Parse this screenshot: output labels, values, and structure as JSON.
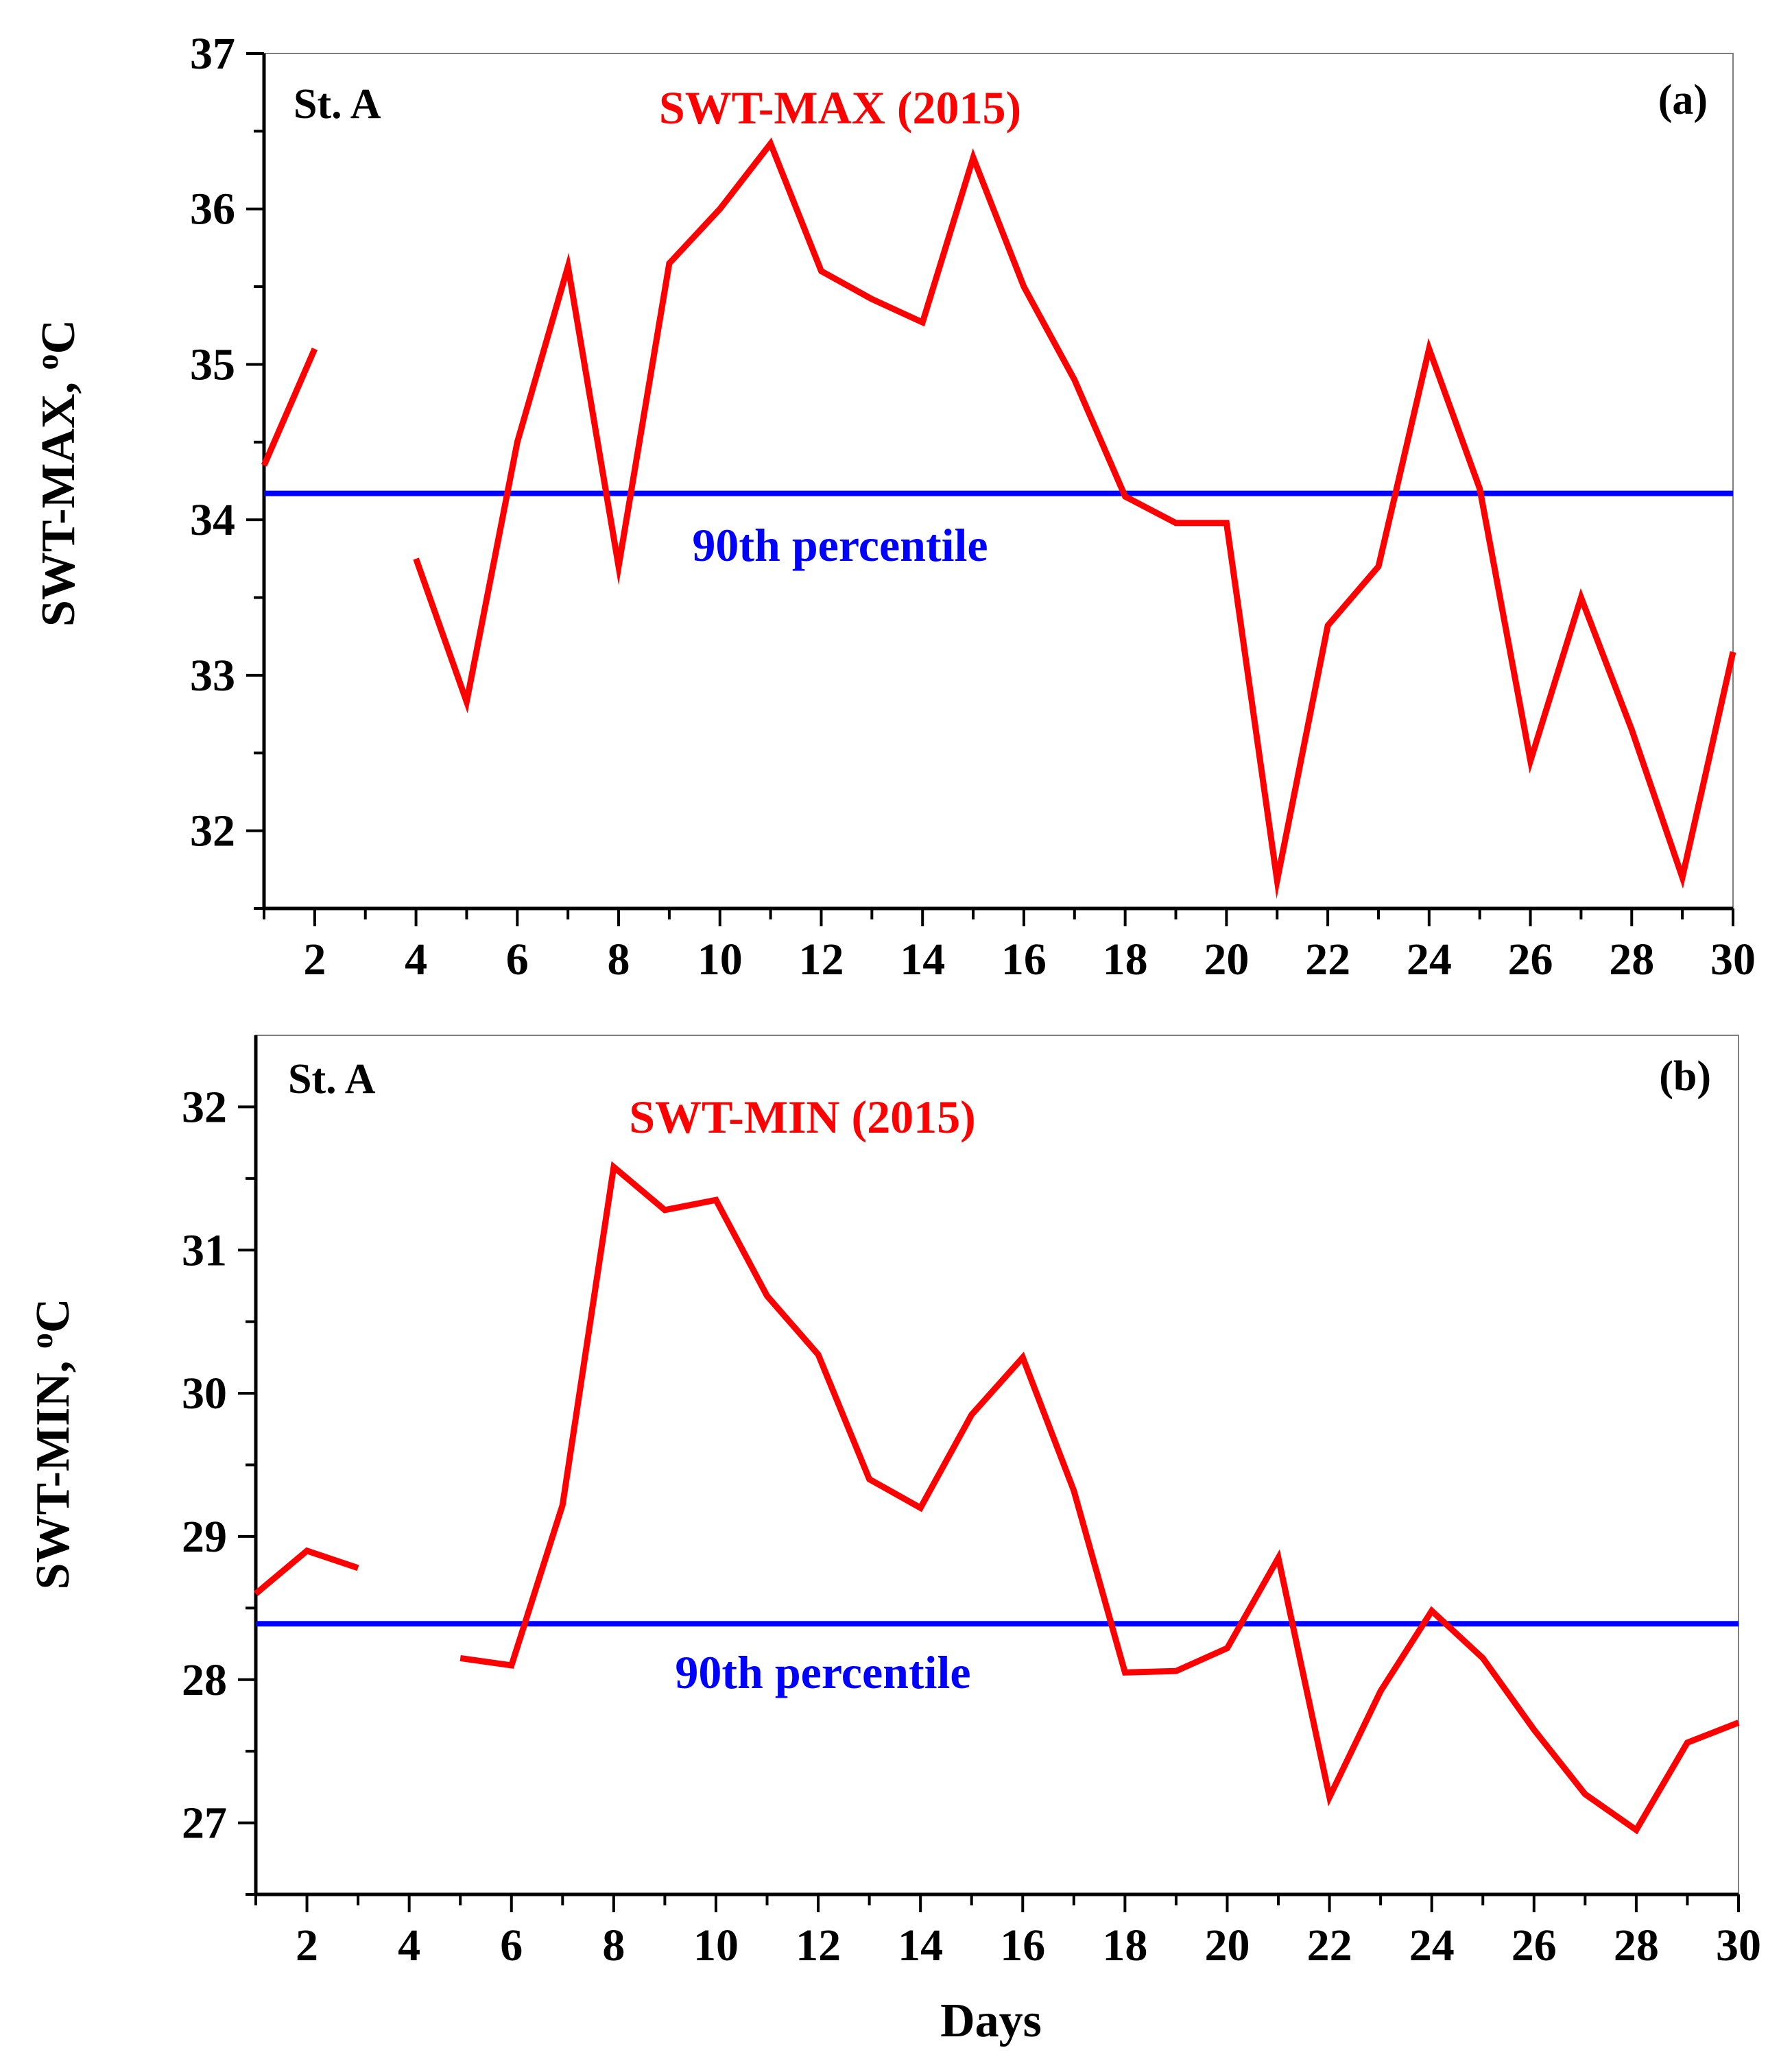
{
  "colors": {
    "series": "#ff0000",
    "reference": "#0000ff",
    "axis": "#000000",
    "background": "#ffffff"
  },
  "x_axis_label": "Days",
  "chart_data": [
    {
      "type": "line",
      "panel": "(a)",
      "station": "St. A",
      "title": "SWT-MAX (2015)",
      "xlabel": "",
      "ylabel": "SWT-MAX, °C",
      "ylabel_main": "SWT-MAX, ",
      "ylabel_sup": "o",
      "ylabel_unit": "C",
      "xlim": [
        1,
        30
      ],
      "ylim": [
        31.5,
        37
      ],
      "xticks": [
        2,
        4,
        6,
        8,
        10,
        12,
        14,
        16,
        18,
        20,
        22,
        24,
        26,
        28,
        30
      ],
      "yticks": [
        32,
        33,
        34,
        35,
        36,
        37
      ],
      "series": [
        {
          "name": "SWT-MAX (2015)",
          "x": [
            1,
            2,
            3,
            4,
            5,
            6,
            7,
            8,
            9,
            10,
            11,
            12,
            13,
            14,
            15,
            16,
            17,
            18,
            19,
            20,
            21,
            22,
            23,
            24,
            25,
            26,
            27,
            28,
            29,
            30
          ],
          "values": [
            34.35,
            35.1,
            null,
            33.75,
            32.83,
            34.5,
            35.63,
            33.7,
            35.65,
            36.0,
            36.42,
            35.6,
            35.42,
            35.27,
            36.33,
            35.5,
            34.9,
            34.15,
            33.98,
            33.98,
            31.68,
            33.32,
            33.7,
            35.1,
            34.2,
            32.45,
            33.5,
            32.65,
            31.7,
            33.15
          ]
        }
      ],
      "reference_line": {
        "label": "90th percentile",
        "value": 34.17
      }
    },
    {
      "type": "line",
      "panel": "(b)",
      "station": "St. A",
      "title": "SWT-MIN (2015)",
      "xlabel": "Days",
      "ylabel": "SWT-MIN, °C",
      "ylabel_main": "SWT-MIN, ",
      "ylabel_sup": "o",
      "ylabel_unit": "C",
      "xlim": [
        1,
        30
      ],
      "ylim": [
        26.5,
        32.5
      ],
      "xticks": [
        2,
        4,
        6,
        8,
        10,
        12,
        14,
        16,
        18,
        20,
        22,
        24,
        26,
        28,
        30
      ],
      "yticks": [
        27,
        28,
        29,
        30,
        31,
        32
      ],
      "series": [
        {
          "name": "SWT-MIN (2015)",
          "x": [
            1,
            2,
            3,
            4,
            5,
            6,
            7,
            8,
            9,
            10,
            11,
            12,
            13,
            14,
            15,
            16,
            17,
            18,
            19,
            20,
            21,
            22,
            23,
            24,
            25,
            26,
            27,
            28,
            29,
            30
          ],
          "values": [
            28.6,
            28.9,
            28.78,
            null,
            28.15,
            28.1,
            29.22,
            31.58,
            31.28,
            31.35,
            30.68,
            30.27,
            29.4,
            29.2,
            29.85,
            30.25,
            29.32,
            28.05,
            28.06,
            28.22,
            28.85,
            27.18,
            27.92,
            28.48,
            28.15,
            27.65,
            27.2,
            26.95,
            27.56,
            27.7
          ]
        }
      ],
      "reference_line": {
        "label": "90th percentile",
        "value": 28.39
      }
    }
  ]
}
